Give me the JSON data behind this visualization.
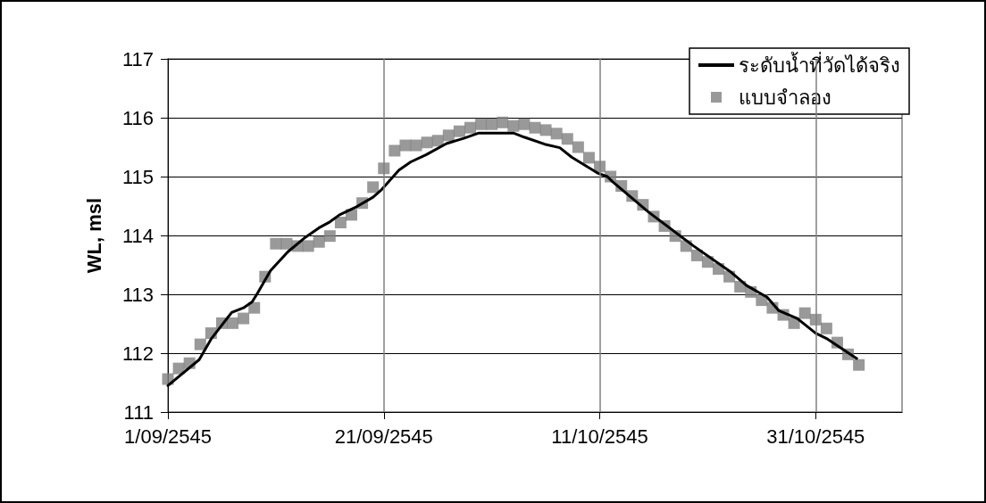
{
  "chart_data": {
    "type": "line",
    "ylabel": "WL, msl",
    "xlim": [
      "2545-09-01",
      "2545-11-08"
    ],
    "xticks": [
      {
        "value": "2545-09-01",
        "label": "1/09/2545"
      },
      {
        "value": "2545-09-21",
        "label": "21/09/2545"
      },
      {
        "value": "2545-10-11",
        "label": "11/10/2545"
      },
      {
        "value": "2545-10-31",
        "label": "31/10/2545"
      }
    ],
    "ylim": [
      111,
      117
    ],
    "yticks": [
      111,
      112,
      113,
      114,
      115,
      116,
      117
    ],
    "grid": true,
    "legend": "top right",
    "series": [
      {
        "name": "ระดับน้ำที่วัดได้จริง",
        "marker": "none",
        "line_style": "solid",
        "color": "#000000",
        "x": [
          "2545-09-01",
          "2545-09-03T21:36",
          "2545-09-05",
          "2545-09-06T21:36",
          "2545-09-08",
          "2545-09-08T19:12",
          "2545-09-09T07:12",
          "2545-09-10T12:00",
          "2545-09-12T02:24",
          "2545-09-13T14:24",
          "2545-09-15",
          "2545-09-16",
          "2545-09-16T21:36",
          "2545-09-18T07:12",
          "2545-09-20",
          "2545-09-20T19:12",
          "2545-09-22T09:36",
          "2545-09-23T12:00",
          "2545-09-24T21:36",
          "2545-09-26T19:12",
          "2545-09-28T09:36",
          "2545-09-29T19:12",
          "2545-10-03",
          "2545-10-04",
          "2545-10-05T21:36",
          "2545-10-07T07:12",
          "2545-10-08T09:36",
          "2545-10-10T19:12",
          "2545-10-11T16:48",
          "2545-10-12T04:48",
          "2545-10-15T12:00",
          "2545-10-19T16:48",
          "2545-10-23T04:48",
          "2545-10-24T14:24",
          "2545-10-26T12:00",
          "2545-10-27T14:24",
          "2545-10-29T07:12",
          "2545-10-31",
          "2545-11-01T02:24",
          "2545-11-03T19:12"
        ],
        "values": [
          111.45,
          111.89,
          112.24,
          112.69,
          112.77,
          112.87,
          113.02,
          113.4,
          113.72,
          113.95,
          114.13,
          114.23,
          114.35,
          114.47,
          114.65,
          114.78,
          115.11,
          115.25,
          115.37,
          115.56,
          115.65,
          115.74,
          115.74,
          115.67,
          115.55,
          115.49,
          115.33,
          115.06,
          115.0,
          114.91,
          114.4,
          113.82,
          113.37,
          113.15,
          112.95,
          112.72,
          112.59,
          112.34,
          112.24,
          111.91
        ]
      },
      {
        "name": "แบบจำลอง",
        "type": "scatter",
        "marker": "square",
        "color": "#808080",
        "x": [
          "2545-09-01",
          "2545-09-02",
          "2545-09-03",
          "2545-09-04",
          "2545-09-05",
          "2545-09-06",
          "2545-09-07",
          "2545-09-08",
          "2545-09-09",
          "2545-09-10",
          "2545-09-11",
          "2545-09-12",
          "2545-09-13",
          "2545-09-14",
          "2545-09-15",
          "2545-09-16",
          "2545-09-17",
          "2545-09-18",
          "2545-09-19",
          "2545-09-20",
          "2545-09-21",
          "2545-09-22",
          "2545-09-23",
          "2545-09-24",
          "2545-09-25",
          "2545-09-26",
          "2545-09-27",
          "2545-09-28",
          "2545-09-29",
          "2545-09-30",
          "2545-10-01",
          "2545-10-02",
          "2545-10-03",
          "2545-10-04",
          "2545-10-05",
          "2545-10-06",
          "2545-10-07",
          "2545-10-08",
          "2545-10-09",
          "2545-10-10",
          "2545-10-11",
          "2545-10-12",
          "2545-10-13",
          "2545-10-14",
          "2545-10-15",
          "2545-10-16",
          "2545-10-17",
          "2545-10-18",
          "2545-10-19",
          "2545-10-20",
          "2545-10-21",
          "2545-10-22",
          "2545-10-23",
          "2545-10-24",
          "2545-10-25",
          "2545-10-26",
          "2545-10-27",
          "2545-10-28",
          "2545-10-29",
          "2545-10-30",
          "2545-10-31",
          "2545-11-01",
          "2545-11-02",
          "2545-11-03",
          "2545-11-04"
        ],
        "values": [
          111.56,
          111.74,
          111.83,
          112.15,
          112.34,
          112.51,
          112.51,
          112.59,
          112.77,
          113.3,
          113.86,
          113.86,
          113.82,
          113.82,
          113.89,
          113.99,
          114.22,
          114.35,
          114.55,
          114.82,
          115.14,
          115.44,
          115.53,
          115.53,
          115.58,
          115.61,
          115.7,
          115.77,
          115.83,
          115.89,
          115.89,
          115.92,
          115.86,
          115.89,
          115.83,
          115.79,
          115.73,
          115.64,
          115.5,
          115.32,
          115.17,
          115.0,
          114.84,
          114.67,
          114.52,
          114.32,
          114.16,
          113.99,
          113.82,
          113.66,
          113.55,
          113.43,
          113.3,
          113.13,
          113.04,
          112.9,
          112.77,
          112.65,
          112.51,
          112.68,
          112.57,
          112.42,
          112.18,
          111.98,
          111.8
        ]
      }
    ]
  }
}
